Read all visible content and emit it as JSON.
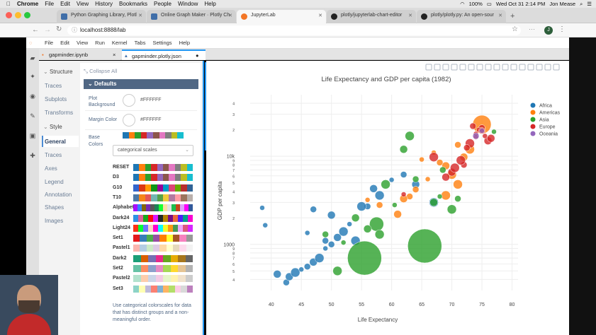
{
  "mac_menubar": {
    "apple_icon": "apple-icon",
    "app": "Chrome",
    "items": [
      "File",
      "Edit",
      "View",
      "History",
      "Bookmarks",
      "People",
      "Window",
      "Help"
    ],
    "battery": "100%",
    "clock": "Wed Oct 31  2:14 PM",
    "user": "Jon Mease"
  },
  "browser_tabs": [
    {
      "title": "Python Graphing Library, Plotl",
      "favicon_color": "#3f6ea8"
    },
    {
      "title": "Online Graph Maker · Plotly Ch",
      "favicon_color": "#3f6ea8"
    },
    {
      "title": "JupyterLab",
      "favicon_color": "#f37626"
    },
    {
      "title": "plotly/jupyterlab-chart-editor",
      "favicon_color": "#222"
    },
    {
      "title": "plotly/plotly.py: An open-sour",
      "favicon_color": "#222"
    }
  ],
  "address": {
    "url": "localhost:8888/lab",
    "avatar": "J"
  },
  "jupyter_menu": [
    "File",
    "Edit",
    "View",
    "Run",
    "Kernel",
    "Tabs",
    "Settings",
    "Help"
  ],
  "doc_tabs": [
    {
      "label": "gapminder.ipynb",
      "close": "×"
    },
    {
      "label": "gapminder.plotly.json",
      "close": "●"
    }
  ],
  "editor": {
    "collapse_all": "Collapse All",
    "nav": {
      "structure_header": "Structure",
      "structure_items": [
        "Traces",
        "Subplots",
        "Transforms"
      ],
      "style_header": "Style",
      "style_items": [
        "General",
        "Traces",
        "Axes",
        "Legend",
        "Annotation",
        "Shapes",
        "Images"
      ],
      "selected": "General"
    },
    "section_title": "Defaults",
    "plot_background": {
      "label": "Plot Background",
      "value": "#FFFFFF"
    },
    "margin_color": {
      "label": "Margin Color",
      "value": "#FFFFFF"
    },
    "base_colors_label": "Base Colors",
    "dropdown_value": "categorical scales",
    "scales": [
      {
        "name": "RESET",
        "colors": [
          "#1f77b4",
          "#ff7f0e",
          "#2ca02c",
          "#d62728",
          "#9467bd",
          "#8c564b",
          "#e377c2",
          "#7f7f7f",
          "#bcbd22",
          "#17becf"
        ]
      },
      {
        "name": "D3",
        "colors": [
          "#1f77b4",
          "#ff7f0e",
          "#2ca02c",
          "#d62728",
          "#9467bd",
          "#8c564b",
          "#e377c2",
          "#7f7f7f",
          "#bcbd22",
          "#17becf"
        ]
      },
      {
        "name": "G10",
        "colors": [
          "#3366cc",
          "#dc3912",
          "#ff9900",
          "#109618",
          "#990099",
          "#0099c6",
          "#dd4477",
          "#66aa00",
          "#b82e2e",
          "#316395"
        ]
      },
      {
        "name": "T10",
        "colors": [
          "#4c78a8",
          "#f58518",
          "#e45756",
          "#72b7b2",
          "#54a24b",
          "#eeca3b",
          "#b279a2",
          "#ff9da6",
          "#9d755d",
          "#bab0ac"
        ]
      },
      {
        "name": "Alphabet",
        "colors": [
          "#aa0dfe",
          "#3283fe",
          "#85660d",
          "#782ab6",
          "#565656",
          "#1c8356",
          "#16ff32",
          "#f7e1a0",
          "#e2e2e2",
          "#1cbe4f",
          "#c4451c",
          "#dea0fd",
          "#fe00fa",
          "#325a9b"
        ]
      },
      {
        "name": "Dark24",
        "colors": [
          "#2e91e5",
          "#e15f99",
          "#1ca71c",
          "#fb0d0d",
          "#da16ff",
          "#222a2a",
          "#b68100",
          "#750d86",
          "#eb663b",
          "#511cfb",
          "#00a08b",
          "#fb00d1"
        ]
      },
      {
        "name": "Light24",
        "colors": [
          "#fd3216",
          "#00fe35",
          "#6a76fc",
          "#fed4c4",
          "#fe00ce",
          "#0df9ff",
          "#f6f926",
          "#ff9616",
          "#479b55",
          "#eea6fb",
          "#dc587d",
          "#d626ff"
        ]
      },
      {
        "name": "Set1",
        "colors": [
          "#e41a1c",
          "#377eb8",
          "#4daf4a",
          "#984ea3",
          "#ff7f00",
          "#ffff33",
          "#a65628",
          "#f781bf",
          "#999999"
        ]
      },
      {
        "name": "Pastel1",
        "colors": [
          "#fbb4ae",
          "#b3cde3",
          "#ccebc5",
          "#decbe4",
          "#fed9a6",
          "#ffffcc",
          "#e5d8bd",
          "#fddaec",
          "#f2f2f2"
        ]
      },
      {
        "name": "Dark2",
        "colors": [
          "#1b9e77",
          "#d95f02",
          "#7570b3",
          "#e7298a",
          "#66a61e",
          "#e6ab02",
          "#a6761d",
          "#666666"
        ]
      },
      {
        "name": "Set2",
        "colors": [
          "#66c2a5",
          "#fc8d62",
          "#8da0cb",
          "#e78ac3",
          "#a6d854",
          "#ffd92f",
          "#e5c494",
          "#b3b3b3"
        ]
      },
      {
        "name": "Pastel2",
        "colors": [
          "#b3e2cd",
          "#fdcdac",
          "#cbd5e8",
          "#f4cae4",
          "#e6f5c9",
          "#fff2ae",
          "#f1e2cc",
          "#cccccc"
        ]
      },
      {
        "name": "Set3",
        "colors": [
          "#8dd3c7",
          "#ffffb3",
          "#bebada",
          "#fb8072",
          "#80b1d3",
          "#fdb462",
          "#b3de69",
          "#fccde5",
          "#d9d9d9",
          "#bc80bd"
        ]
      }
    ],
    "description": "Use categorical colorscales for data that has distinct groups and a non-meaningful order."
  },
  "chart_data": {
    "type": "scatter",
    "title": "Life Expectancy and GDP per capita (1982)",
    "xlabel": "Life Expectancy",
    "ylabel": "GDP per capita",
    "x_ticks": [
      40,
      45,
      50,
      55,
      60,
      65,
      70,
      75,
      80
    ],
    "xlim": [
      36.5,
      81
    ],
    "y_log": true,
    "ylim": [
      300,
      50000
    ],
    "y_tick_labels": [
      {
        "v": 400,
        "t": "4"
      },
      {
        "v": 500,
        "t": "5"
      },
      {
        "v": 600,
        "t": "6"
      },
      {
        "v": 700,
        "t": "7"
      },
      {
        "v": 800,
        "t": "8"
      },
      {
        "v": 900,
        "t": "9"
      },
      {
        "v": 1000,
        "t": "1000"
      },
      {
        "v": 2000,
        "t": "2"
      },
      {
        "v": 3000,
        "t": "3"
      },
      {
        "v": 4000,
        "t": "4"
      },
      {
        "v": 5000,
        "t": "5"
      },
      {
        "v": 6000,
        "t": "6"
      },
      {
        "v": 7000,
        "t": "7"
      },
      {
        "v": 8000,
        "t": "8"
      },
      {
        "v": 9000,
        "t": "9"
      },
      {
        "v": 10000,
        "t": "10k"
      },
      {
        "v": 20000,
        "t": "2"
      },
      {
        "v": 30000,
        "t": "3"
      },
      {
        "v": 40000,
        "t": "4"
      }
    ],
    "legend_position": "top-right",
    "series": [
      {
        "name": "Africa",
        "color": "#1f77b4",
        "points": [
          [
            38.5,
            2600
          ],
          [
            42.5,
            370
          ],
          [
            43,
            430
          ],
          [
            44,
            480
          ],
          [
            45,
            520
          ],
          [
            46,
            560
          ],
          [
            47,
            630
          ],
          [
            48,
            700
          ],
          [
            49,
            900
          ],
          [
            50,
            1000
          ],
          [
            51,
            1200
          ],
          [
            52,
            1400
          ],
          [
            53,
            1700
          ],
          [
            56,
            2700
          ],
          [
            57,
            4300
          ],
          [
            58,
            3600
          ],
          [
            60,
            5400
          ],
          [
            62,
            6200
          ],
          [
            64,
            4800
          ],
          [
            67,
            3000
          ],
          [
            46,
            1350
          ],
          [
            49,
            1100
          ],
          [
            41,
            460
          ],
          [
            54,
            1100
          ],
          [
            39,
            1650
          ],
          [
            47,
            2500
          ],
          [
            50,
            2150
          ],
          [
            55,
            2700
          ]
        ]
      },
      {
        "name": "Americas",
        "color": "#ff7f0e",
        "points": [
          [
            75,
            23000
          ],
          [
            63,
            3500
          ],
          [
            69,
            7800
          ],
          [
            71,
            4800
          ],
          [
            66,
            5500
          ],
          [
            68,
            8500
          ],
          [
            72,
            9800
          ],
          [
            73,
            12000
          ],
          [
            65,
            9200
          ],
          [
            64,
            4200
          ],
          [
            62,
            3300
          ],
          [
            70,
            6200
          ],
          [
            56,
            3200
          ],
          [
            58,
            2800
          ],
          [
            61,
            2200
          ],
          [
            69,
            3600
          ],
          [
            67,
            11000
          ],
          [
            71,
            13500
          ]
        ]
      },
      {
        "name": "Asia",
        "color": "#2ca02c",
        "points": [
          [
            55.5,
            700
          ],
          [
            65.5,
            960
          ],
          [
            57.5,
            1700
          ],
          [
            63,
            17000
          ],
          [
            77,
            19000
          ],
          [
            71,
            3300
          ],
          [
            56,
            1500
          ],
          [
            51,
            500
          ],
          [
            68,
            3500
          ],
          [
            68.5,
            7000
          ],
          [
            54,
            2000
          ],
          [
            59,
            4800
          ],
          [
            60.5,
            2800
          ],
          [
            49,
            1300
          ],
          [
            62,
            12000
          ],
          [
            58,
            1300
          ],
          [
            52,
            1050
          ],
          [
            64,
            5500
          ],
          [
            67,
            3000
          ],
          [
            70,
            2500
          ]
        ]
      },
      {
        "name": "Europe",
        "color": "#d62728",
        "points": [
          [
            74,
            18000
          ],
          [
            75,
            21000
          ],
          [
            76,
            15000
          ],
          [
            73,
            14000
          ],
          [
            75.5,
            17000
          ],
          [
            72,
            8000
          ],
          [
            70,
            6600
          ],
          [
            71.5,
            9000
          ],
          [
            74.5,
            20000
          ],
          [
            73.5,
            22000
          ],
          [
            69,
            5800
          ],
          [
            67,
            9800
          ],
          [
            62,
            3700
          ],
          [
            72.5,
            12500
          ],
          [
            76.5,
            16000
          ],
          [
            70.5,
            7400
          ],
          [
            74,
            16500
          ],
          [
            75,
            19500
          ]
        ]
      },
      {
        "name": "Oceania",
        "color": "#9467bd",
        "points": [
          [
            75,
            19500
          ],
          [
            74,
            17000
          ]
        ]
      }
    ]
  }
}
